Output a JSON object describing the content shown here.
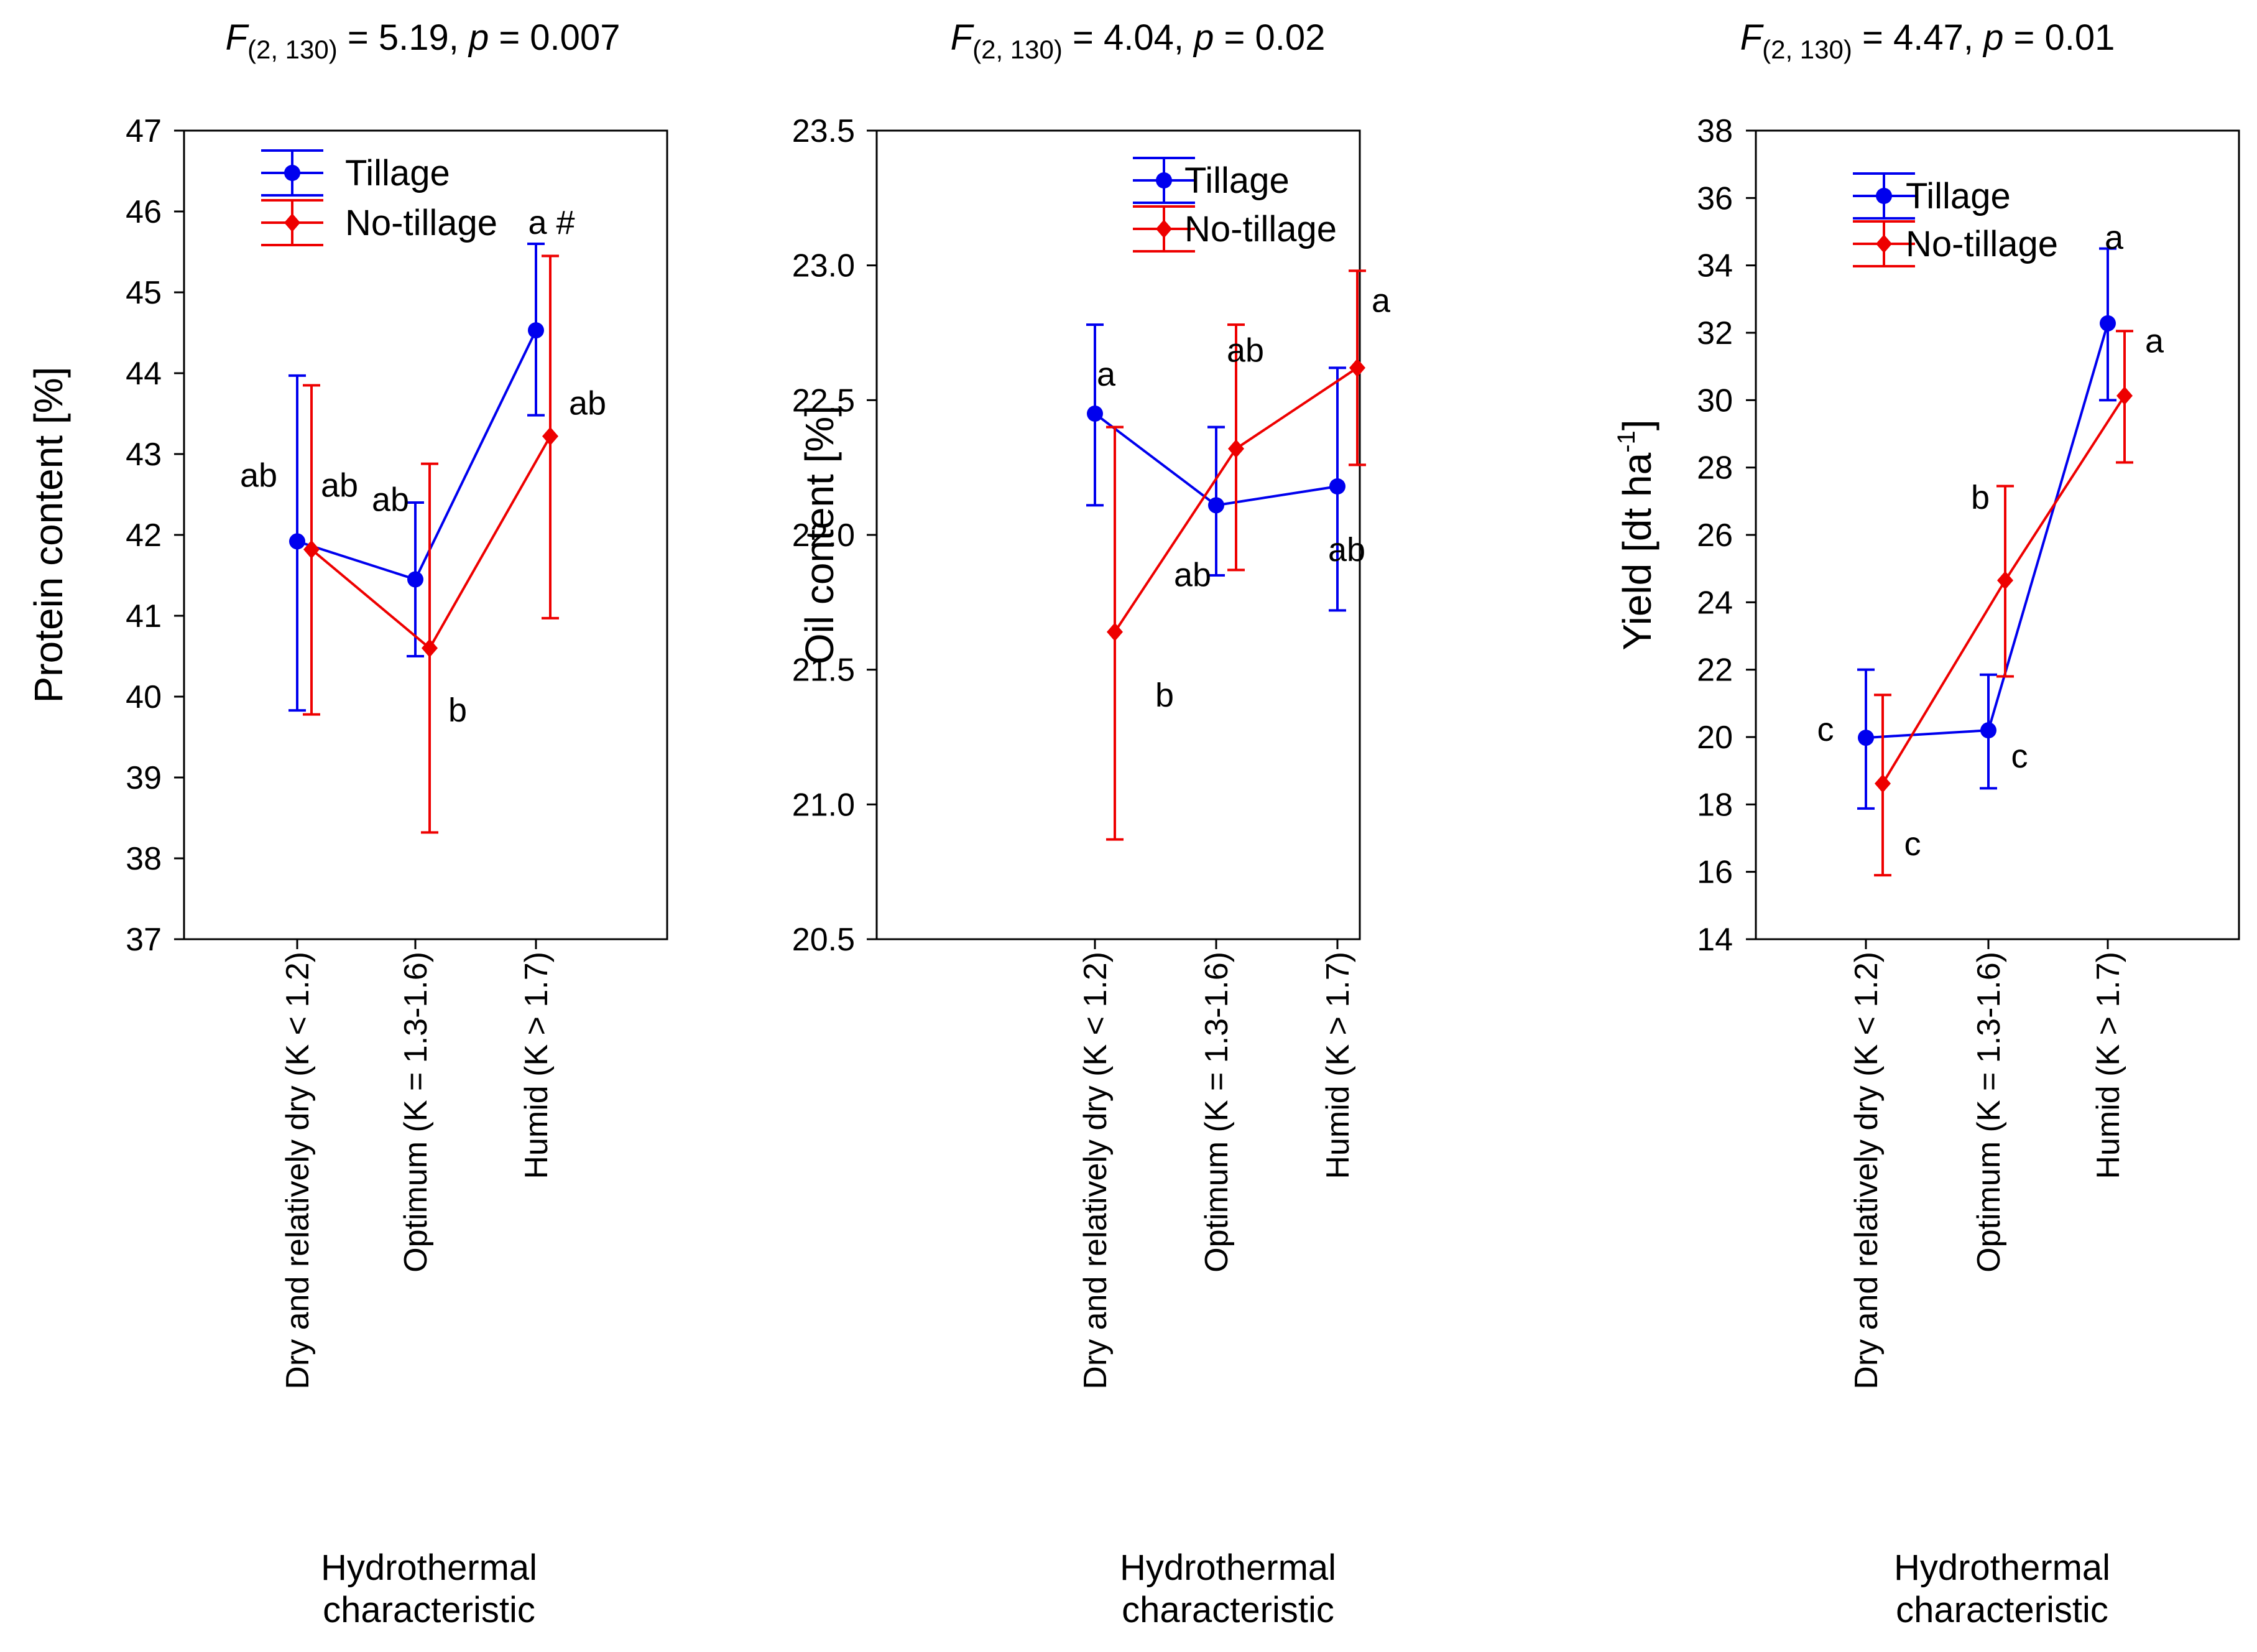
{
  "colors": {
    "tillage": "#0000ee",
    "no_tillage": "#ee0000",
    "axis": "#000000"
  },
  "chart_data": [
    {
      "type": "line",
      "stat": {
        "symbol": "F",
        "subscript": "(2, 130)",
        "rest": " = 5.19, ",
        "p_symbol": "p",
        "p_value": " = 0.007"
      },
      "ylabel": "Protein content [%]",
      "ylabel_super": "",
      "ylabel_after": "",
      "xlabel_line1": "Hydrothermal",
      "xlabel_line2": "characteristic",
      "ylim": [
        37,
        47
      ],
      "yticks": [
        37,
        38,
        39,
        40,
        41,
        42,
        43,
        44,
        45,
        46,
        47
      ],
      "ytick_labels": [
        "37",
        "38",
        "39",
        "40",
        "41",
        "42",
        "43",
        "44",
        "45",
        "46",
        "47"
      ],
      "categories": [
        "Dry and relatively dry (K < 1.2)",
        "Optimum (K = 1.3-1.6)",
        "Humid (K > 1.7)"
      ],
      "legend": {
        "position": "top-left",
        "tillage": "Tillage",
        "no_tillage": "No-tillage"
      },
      "series": [
        {
          "name": "Tillage",
          "key": "tillage",
          "marker": "circle",
          "values": [
            41.92,
            41.45,
            44.53
          ],
          "err_low": [
            39.83,
            40.5,
            43.48
          ],
          "err_high": [
            43.97,
            42.4,
            45.6
          ],
          "labels": [
            "ab",
            "ab",
            "a #"
          ]
        },
        {
          "name": "No-tillage",
          "key": "no_tillage",
          "marker": "diamond",
          "values": [
            41.82,
            40.6,
            43.22
          ],
          "err_low": [
            39.78,
            38.32,
            40.97
          ],
          "err_high": [
            43.85,
            42.88,
            45.45
          ],
          "labels": [
            "ab",
            "b",
            "ab"
          ]
        }
      ]
    },
    {
      "type": "line",
      "stat": {
        "symbol": "F",
        "subscript": "(2, 130)",
        "rest": " = 4.04, ",
        "p_symbol": "p",
        "p_value": " = 0.02"
      },
      "ylabel": "Oil content [%]",
      "ylabel_super": "",
      "ylabel_after": "",
      "xlabel_line1": "Hydrothermal",
      "xlabel_line2": "characteristic",
      "ylim": [
        20.5,
        23.5
      ],
      "yticks": [
        20.5,
        21.0,
        21.5,
        22.0,
        22.5,
        23.0,
        23.5
      ],
      "ytick_labels": [
        "20.5",
        "21.0",
        "21.5",
        "22.0",
        "22.5",
        "23.0",
        "23.5"
      ],
      "categories": [
        "Dry and relatively dry (K < 1.2)",
        "Optimum (K = 1.3-1.6)",
        "Humid (K > 1.7)"
      ],
      "legend": {
        "position": "top-left",
        "tillage": "Tillage",
        "no_tillage": "No-tillage"
      },
      "series": [
        {
          "name": "Tillage",
          "key": "tillage",
          "marker": "circle",
          "values": [
            22.45,
            22.11,
            22.18
          ],
          "err_low": [
            22.11,
            21.85,
            21.72
          ],
          "err_high": [
            22.78,
            22.4,
            22.62
          ],
          "labels": [
            "a",
            "ab",
            "ab"
          ]
        },
        {
          "name": "No-tillage",
          "key": "no_tillage",
          "marker": "diamond",
          "values": [
            21.64,
            22.32,
            22.62
          ],
          "err_low": [
            20.87,
            21.87,
            22.26
          ],
          "err_high": [
            22.4,
            22.78,
            22.98
          ],
          "labels": [
            "b",
            "ab",
            "a"
          ]
        }
      ]
    },
    {
      "type": "line",
      "stat": {
        "symbol": "F",
        "subscript": "(2, 130)",
        "rest": " = 4.47, ",
        "p_symbol": "p",
        "p_value": " = 0.01"
      },
      "ylabel": "Yield [dt ha",
      "ylabel_super": "-1",
      "ylabel_after": "]",
      "xlabel_line1": "Hydrothermal",
      "xlabel_line2": "characteristic",
      "ylim": [
        14,
        38
      ],
      "yticks": [
        14,
        16,
        18,
        20,
        22,
        24,
        26,
        28,
        30,
        32,
        34,
        36,
        38
      ],
      "ytick_labels": [
        "14",
        "16",
        "18",
        "20",
        "22",
        "24",
        "26",
        "28",
        "30",
        "32",
        "34",
        "36",
        "38"
      ],
      "categories": [
        "Dry and relatively dry (K < 1.2)",
        "Optimum (K = 1.3-1.6)",
        "Humid (K > 1.7)"
      ],
      "legend": {
        "position": "top-left",
        "tillage": "Tillage",
        "no_tillage": "No-tillage"
      },
      "series": [
        {
          "name": "Tillage",
          "key": "tillage",
          "marker": "circle",
          "values": [
            19.98,
            20.2,
            32.28
          ],
          "err_low": [
            17.88,
            18.48,
            30.0
          ],
          "err_high": [
            22.0,
            21.85,
            34.5
          ],
          "labels": [
            "c",
            "c",
            "a"
          ]
        },
        {
          "name": "No-tillage",
          "key": "no_tillage",
          "marker": "diamond",
          "values": [
            18.62,
            24.65,
            30.13
          ],
          "err_low": [
            15.9,
            21.8,
            28.15
          ],
          "err_high": [
            21.25,
            27.45,
            32.05
          ],
          "labels": [
            "c",
            "b",
            "a"
          ]
        }
      ]
    }
  ]
}
